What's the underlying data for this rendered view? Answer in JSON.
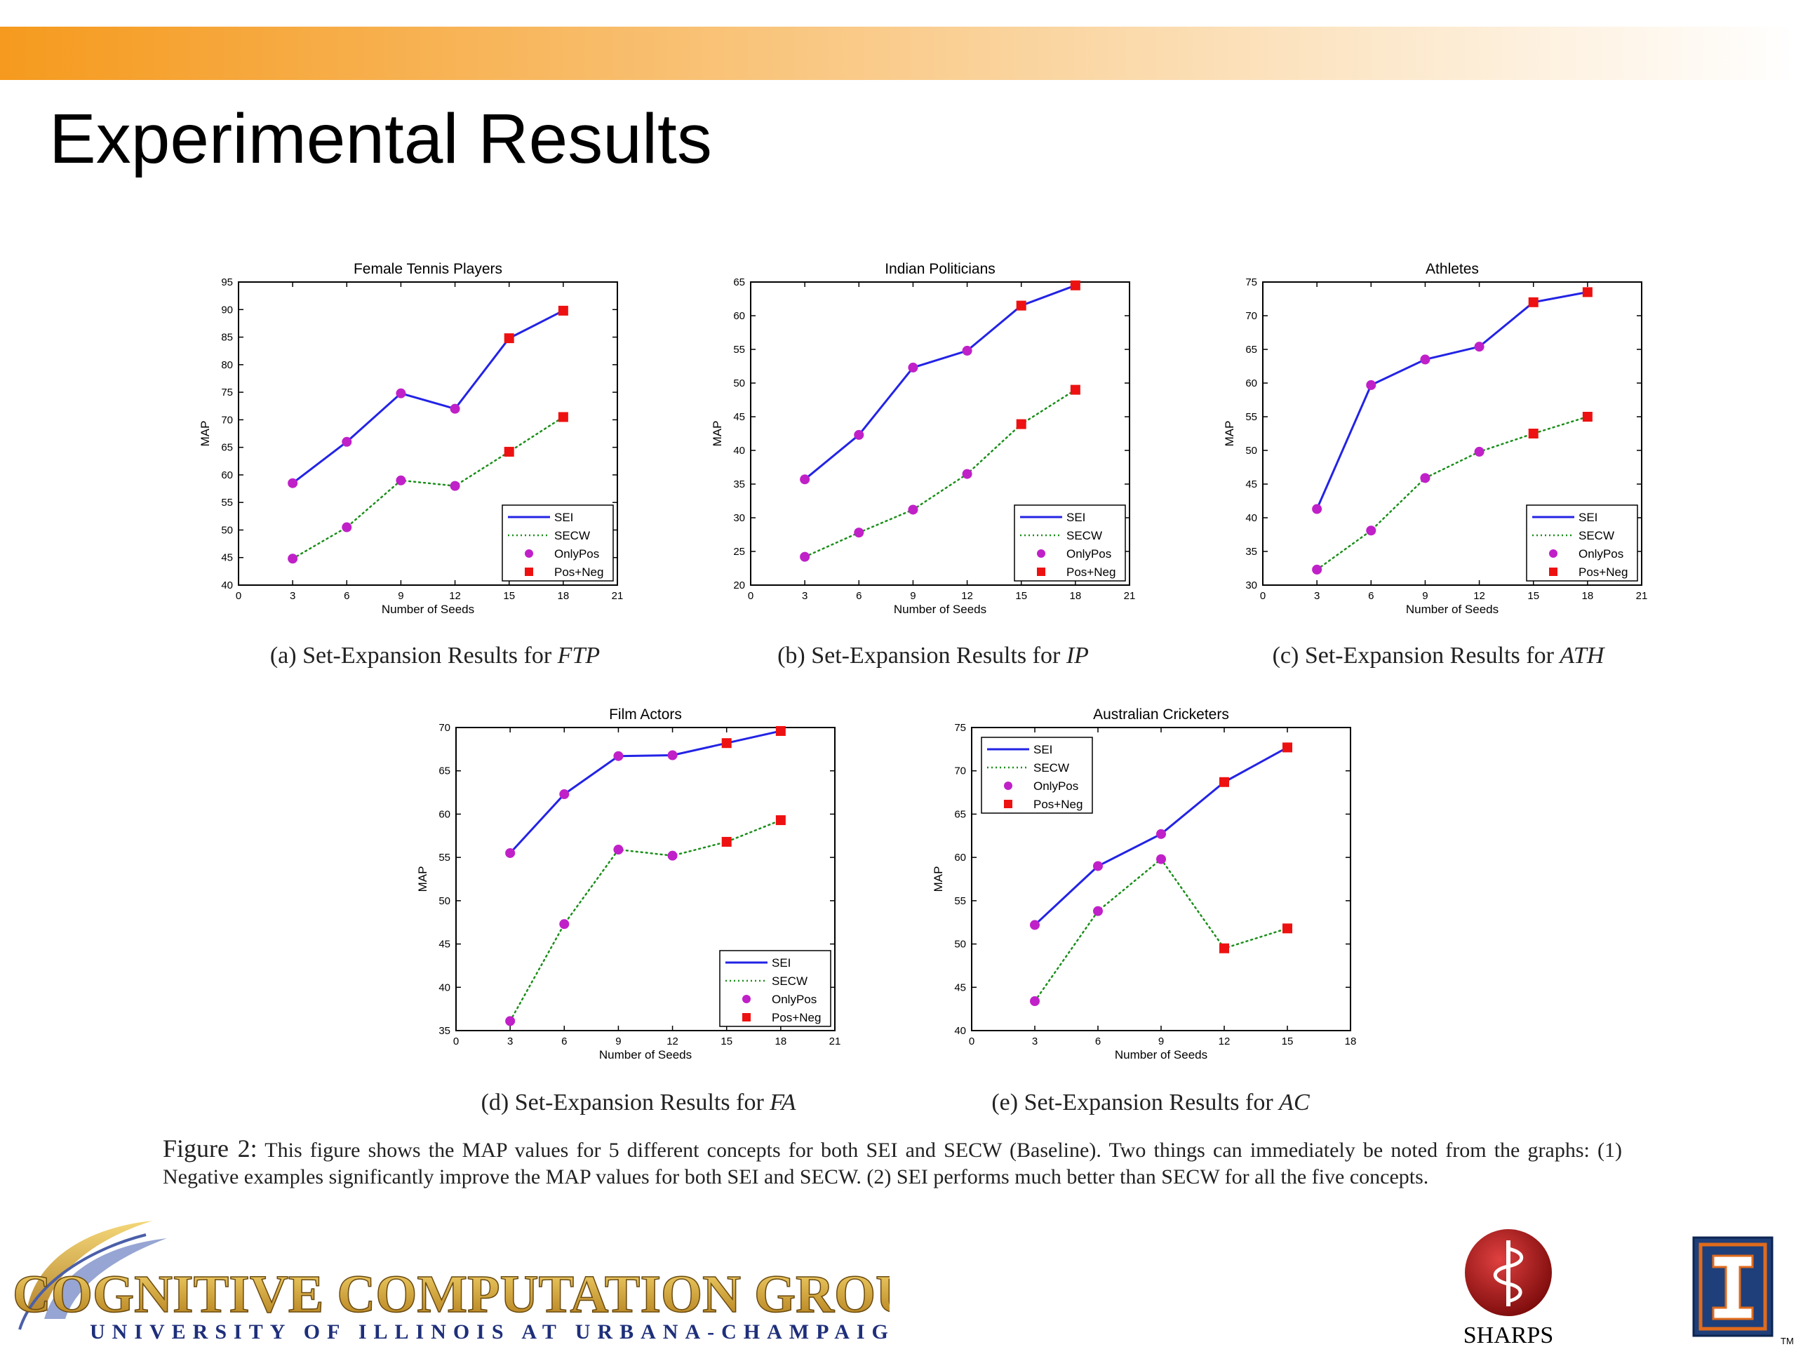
{
  "slide": {
    "title": "Experimental Results"
  },
  "legend_labels": [
    "SEI",
    "SECW",
    "OnlyPos",
    "Pos+Neg"
  ],
  "colors": {
    "sei": "#2323e6",
    "secw": "#1a8f1a",
    "only_pos": "#c020c8",
    "pos_neg": "#ee1111",
    "header_bar": "#f59a1e"
  },
  "chart_data": [
    {
      "type": "line",
      "title": "Female Tennis Players",
      "caption_prefix": "(a) Set-Expansion Results for ",
      "caption_concept": "FTP",
      "xlabel": "Number of Seeds",
      "ylabel": "MAP",
      "xlim": [
        0,
        21
      ],
      "ylim": [
        40,
        95
      ],
      "xticks": [
        0,
        3,
        6,
        9,
        12,
        15,
        18,
        21
      ],
      "yticks": [
        40,
        45,
        50,
        55,
        60,
        65,
        70,
        75,
        80,
        85,
        90,
        95
      ],
      "legend_position": "bottom-right",
      "x": [
        3,
        6,
        9,
        12,
        15,
        18
      ],
      "series": [
        {
          "name": "SEI",
          "values": [
            58.5,
            66,
            74.8,
            72,
            84.8,
            89.8
          ],
          "markers": [
            "OnlyPos",
            "OnlyPos",
            "OnlyPos",
            "OnlyPos",
            "Pos+Neg",
            "Pos+Neg"
          ]
        },
        {
          "name": "SECW",
          "values": [
            44.8,
            50.5,
            59,
            58,
            64.2,
            70.5
          ],
          "markers": [
            "OnlyPos",
            "OnlyPos",
            "OnlyPos",
            "OnlyPos",
            "Pos+Neg",
            "Pos+Neg"
          ]
        }
      ]
    },
    {
      "type": "line",
      "title": "Indian Politicians",
      "caption_prefix": "(b) Set-Expansion Results for ",
      "caption_concept": "IP",
      "xlabel": "Number of Seeds",
      "ylabel": "MAP",
      "xlim": [
        0,
        21
      ],
      "ylim": [
        20,
        65
      ],
      "xticks": [
        0,
        3,
        6,
        9,
        12,
        15,
        18,
        21
      ],
      "yticks": [
        20,
        25,
        30,
        35,
        40,
        45,
        50,
        55,
        60,
        65
      ],
      "legend_position": "bottom-right",
      "x": [
        3,
        6,
        9,
        12,
        15,
        18
      ],
      "series": [
        {
          "name": "SEI",
          "values": [
            35.7,
            42.3,
            52.3,
            54.8,
            61.5,
            64.5
          ],
          "markers": [
            "OnlyPos",
            "OnlyPos",
            "OnlyPos",
            "OnlyPos",
            "Pos+Neg",
            "Pos+Neg"
          ]
        },
        {
          "name": "SECW",
          "values": [
            24.2,
            27.8,
            31.2,
            36.5,
            43.9,
            49
          ],
          "markers": [
            "OnlyPos",
            "OnlyPos",
            "OnlyPos",
            "OnlyPos",
            "Pos+Neg",
            "Pos+Neg"
          ]
        }
      ]
    },
    {
      "type": "line",
      "title": "Athletes",
      "caption_prefix": "(c) Set-Expansion Results for ",
      "caption_concept": "ATH",
      "xlabel": "Number of Seeds",
      "ylabel": "MAP",
      "xlim": [
        0,
        21
      ],
      "ylim": [
        30,
        75
      ],
      "xticks": [
        0,
        3,
        6,
        9,
        12,
        15,
        18,
        21
      ],
      "yticks": [
        30,
        35,
        40,
        45,
        50,
        55,
        60,
        65,
        70,
        75
      ],
      "legend_position": "bottom-right",
      "x": [
        3,
        6,
        9,
        12,
        15,
        18
      ],
      "series": [
        {
          "name": "SEI",
          "values": [
            41.3,
            59.7,
            63.5,
            65.4,
            72,
            73.5
          ],
          "markers": [
            "OnlyPos",
            "OnlyPos",
            "OnlyPos",
            "OnlyPos",
            "Pos+Neg",
            "Pos+Neg"
          ]
        },
        {
          "name": "SECW",
          "values": [
            32.3,
            38.1,
            45.9,
            49.8,
            52.5,
            55
          ],
          "markers": [
            "OnlyPos",
            "OnlyPos",
            "OnlyPos",
            "OnlyPos",
            "Pos+Neg",
            "Pos+Neg"
          ]
        }
      ]
    },
    {
      "type": "line",
      "title": "Film Actors",
      "caption_prefix": "(d) Set-Expansion Results for ",
      "caption_concept": "FA",
      "xlabel": "Number of Seeds",
      "ylabel": "MAP",
      "xlim": [
        0,
        21
      ],
      "ylim": [
        35,
        70
      ],
      "xticks": [
        0,
        3,
        6,
        9,
        12,
        15,
        18,
        21
      ],
      "yticks": [
        35,
        40,
        45,
        50,
        55,
        60,
        65,
        70
      ],
      "legend_position": "bottom-right",
      "x": [
        3,
        6,
        9,
        12,
        15,
        18
      ],
      "series": [
        {
          "name": "SEI",
          "values": [
            55.5,
            62.3,
            66.7,
            66.8,
            68.2,
            69.6
          ],
          "markers": [
            "OnlyPos",
            "OnlyPos",
            "OnlyPos",
            "OnlyPos",
            "Pos+Neg",
            "Pos+Neg"
          ]
        },
        {
          "name": "SECW",
          "values": [
            36.1,
            47.3,
            55.9,
            55.2,
            56.8,
            59.3
          ],
          "markers": [
            "OnlyPos",
            "OnlyPos",
            "OnlyPos",
            "OnlyPos",
            "Pos+Neg",
            "Pos+Neg"
          ]
        }
      ]
    },
    {
      "type": "line",
      "title": "Australian Cricketers",
      "caption_prefix": "(e) Set-Expansion Results for ",
      "caption_concept": "AC",
      "xlabel": "Number of Seeds",
      "ylabel": "MAP",
      "xlim": [
        0,
        18
      ],
      "ylim": [
        40,
        75
      ],
      "xticks": [
        0,
        3,
        6,
        9,
        12,
        15,
        18
      ],
      "yticks": [
        40,
        45,
        50,
        55,
        60,
        65,
        70,
        75
      ],
      "legend_position": "top-left",
      "x": [
        3,
        6,
        9,
        12,
        15
      ],
      "series": [
        {
          "name": "SEI",
          "values": [
            52.2,
            59,
            62.7,
            68.7,
            72.7
          ],
          "markers": [
            "OnlyPos",
            "OnlyPos",
            "OnlyPos",
            "Pos+Neg",
            "Pos+Neg"
          ]
        },
        {
          "name": "SECW",
          "values": [
            43.4,
            53.8,
            59.8,
            49.5,
            51.8
          ],
          "markers": [
            "OnlyPos",
            "OnlyPos",
            "OnlyPos",
            "Pos+Neg",
            "Pos+Neg"
          ]
        }
      ]
    }
  ],
  "figure_caption": {
    "lead": "Figure 2:",
    "text": "This figure shows the MAP values for 5 different concepts for both SEI and SECW (Baseline). Two things can immediately be noted from the graphs: (1) Negative examples significantly improve the MAP values for both SEI and SECW. (2) SEI performs much better than SECW for all the five concepts."
  },
  "logos": {
    "ccg_name": "COGNITIVE COMPUTATION GROUP",
    "ccg_university": "UNIVERSITY OF ILLINOIS AT URBANA-CHAMPAIGN",
    "sharps": "SHARPS",
    "tm": "TM"
  }
}
